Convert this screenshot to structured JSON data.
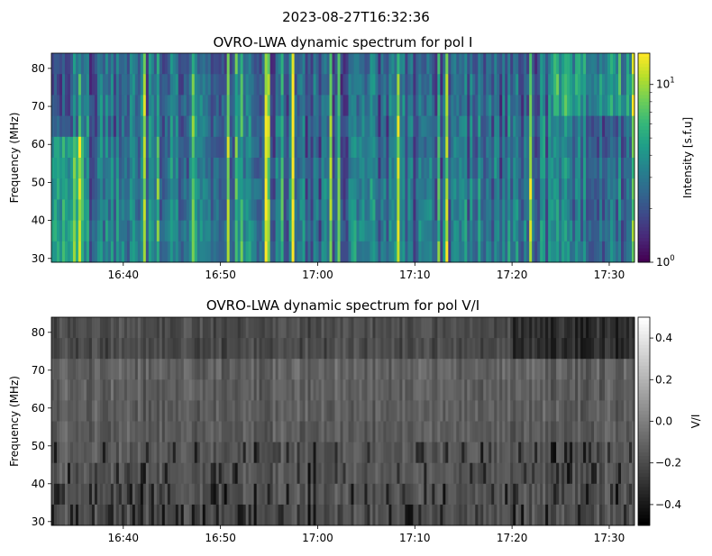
{
  "suptitle": "2023-08-27T16:32:36",
  "colors": {
    "viridis_dark": "#440154",
    "viridis_blue": "#31688e",
    "viridis_green": "#35b779",
    "viridis_yellow": "#fde725",
    "gray_black": "#000000",
    "gray_white": "#ffffff"
  },
  "chart_data": [
    {
      "type": "heatmap",
      "title": "OVRO-LWA dynamic spectrum for pol I",
      "xlabel": "",
      "ylabel": "Frequency (MHz)",
      "x_ticks": [
        "16:40",
        "16:50",
        "17:00",
        "17:10",
        "17:20",
        "17:30"
      ],
      "x_tick_values_min": [
        40,
        50,
        60,
        70,
        80,
        90
      ],
      "x_range_min": [
        32.6,
        92.6
      ],
      "y_ticks": [
        30,
        40,
        50,
        60,
        70,
        80
      ],
      "y_range": [
        29,
        84
      ],
      "colormap": "viridis",
      "colorbar": {
        "label": "Intensity [s.f.u]",
        "scale": "log",
        "range": [
          1,
          15
        ],
        "ticks": [
          {
            "value": 1,
            "base": "10",
            "exp": "0"
          },
          {
            "value": 10,
            "base": "10",
            "exp": "1"
          }
        ]
      }
    },
    {
      "type": "heatmap",
      "title": "OVRO-LWA dynamic spectrum for pol V/I",
      "xlabel": "",
      "ylabel": "Frequency (MHz)",
      "x_ticks": [
        "16:40",
        "16:50",
        "17:00",
        "17:10",
        "17:20",
        "17:30"
      ],
      "x_tick_values_min": [
        40,
        50,
        60,
        70,
        80,
        90
      ],
      "x_range_min": [
        32.6,
        92.6
      ],
      "y_ticks": [
        30,
        40,
        50,
        60,
        70,
        80
      ],
      "y_range": [
        29,
        84
      ],
      "colormap": "gray",
      "colorbar": {
        "label": "V/I",
        "scale": "linear",
        "range": [
          -0.5,
          0.5
        ],
        "ticks": [
          {
            "value": 0.4,
            "label": "0.4"
          },
          {
            "value": 0.2,
            "label": "0.2"
          },
          {
            "value": 0.0,
            "label": "0.0"
          },
          {
            "value": -0.2,
            "label": "−0.2"
          },
          {
            "value": -0.4,
            "label": "−0.4"
          }
        ]
      }
    }
  ]
}
